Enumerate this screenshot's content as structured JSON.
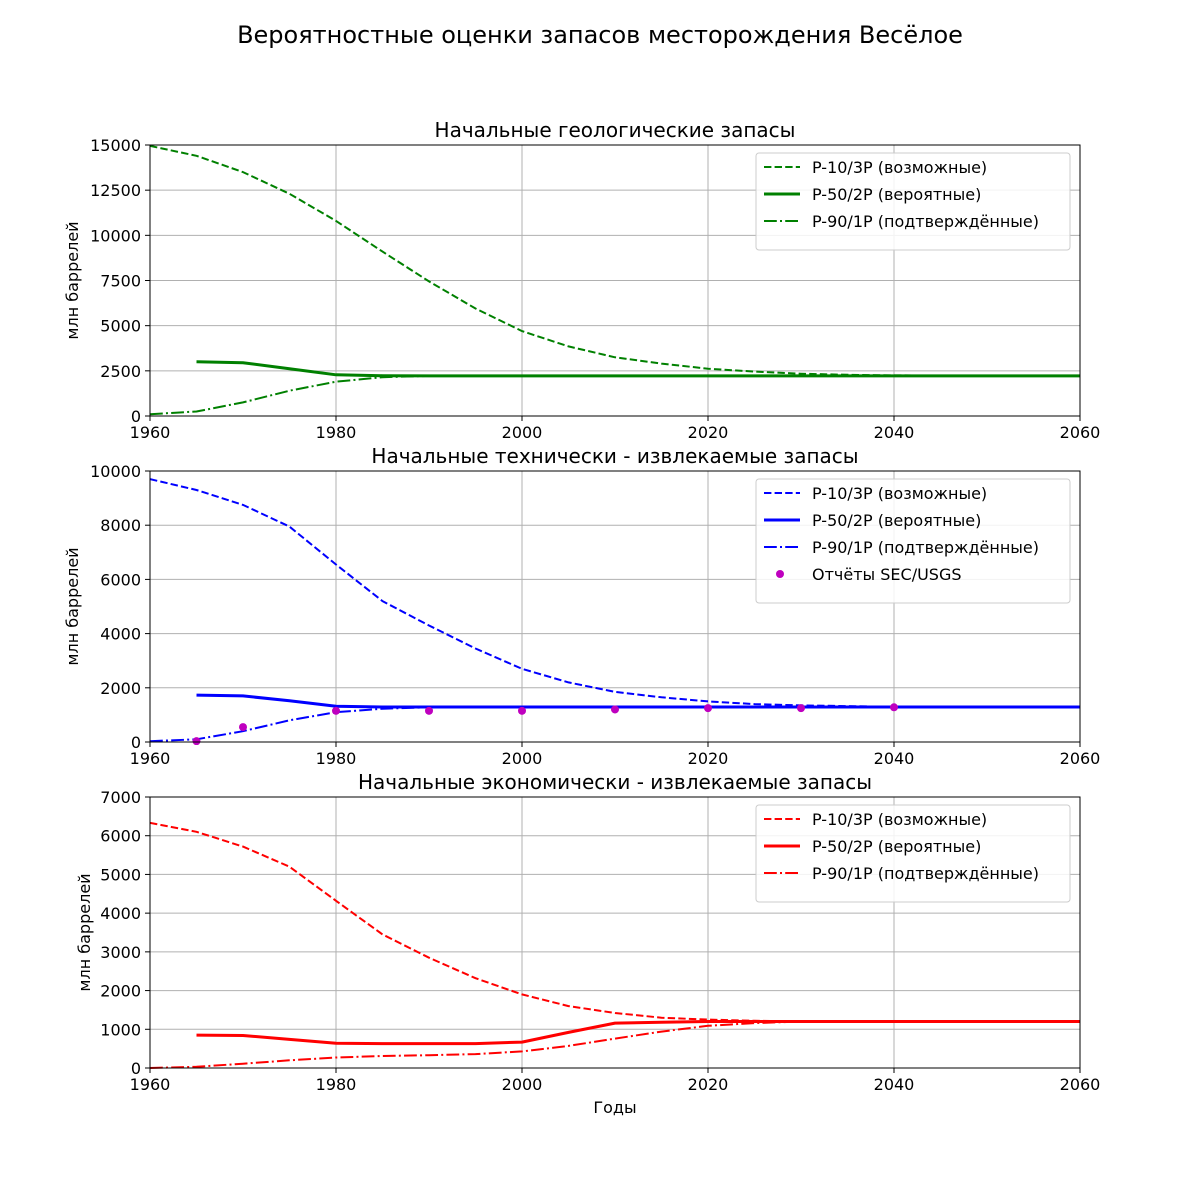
{
  "figure": {
    "suptitle": "Вероятностные оценки запасов месторождения Весёлое",
    "xlabel": "Годы"
  },
  "colors": {
    "green": "#008000",
    "blue": "#0000ff",
    "red": "#ff0000",
    "markers": "#bf00bf",
    "grid": "#b0b0b0"
  },
  "chart_data": [
    {
      "type": "line",
      "title": "Начальные геологические запасы",
      "ylabel": "млн баррелей",
      "xlim": [
        1960,
        2060
      ],
      "ylim": [
        0,
        15000
      ],
      "xticks": [
        1960,
        1980,
        2000,
        2020,
        2040,
        2060
      ],
      "yticks": [
        0,
        2500,
        5000,
        7500,
        10000,
        12500,
        15000
      ],
      "color": "green",
      "legend_position": "top-right",
      "series": [
        {
          "name": "P-10/3P (возможные)",
          "style": "dashed",
          "x": [
            1960,
            1965,
            1970,
            1975,
            1980,
            1985,
            1990,
            1995,
            2000,
            2005,
            2010,
            2015,
            2020,
            2025,
            2030,
            2035,
            2040,
            2050,
            2060
          ],
          "y": [
            14950,
            14400,
            13500,
            12300,
            10800,
            9100,
            7450,
            5950,
            4700,
            3850,
            3250,
            2900,
            2620,
            2460,
            2340,
            2280,
            2250,
            2230,
            2230
          ]
        },
        {
          "name": "P-50/2P (вероятные)",
          "style": "solid",
          "x": [
            1965,
            1970,
            1975,
            1980,
            1985,
            1990,
            2000,
            2020,
            2040,
            2060
          ],
          "y": [
            3000,
            2950,
            2620,
            2280,
            2230,
            2220,
            2220,
            2220,
            2220,
            2220
          ]
        },
        {
          "name": "P-90/1P (подтверждённые)",
          "style": "dashdot",
          "x": [
            1960,
            1965,
            1970,
            1975,
            1980,
            1985,
            1990,
            2000,
            2020,
            2040,
            2060
          ],
          "y": [
            100,
            250,
            750,
            1400,
            1900,
            2150,
            2220,
            2220,
            2220,
            2220,
            2220
          ]
        }
      ]
    },
    {
      "type": "line",
      "title": "Начальные технически - извлекаемые запасы",
      "ylabel": "млн баррелей",
      "xlim": [
        1960,
        2060
      ],
      "ylim": [
        0,
        10000
      ],
      "xticks": [
        1960,
        1980,
        2000,
        2020,
        2040,
        2060
      ],
      "yticks": [
        0,
        2000,
        4000,
        6000,
        8000,
        10000
      ],
      "color": "blue",
      "legend_position": "top-right",
      "series": [
        {
          "name": "P-10/3P (возможные)",
          "style": "dashed",
          "x": [
            1960,
            1965,
            1970,
            1975,
            1980,
            1985,
            1990,
            1995,
            2000,
            2005,
            2010,
            2015,
            2020,
            2025,
            2030,
            2040,
            2050,
            2060
          ],
          "y": [
            9700,
            9300,
            8750,
            7950,
            6550,
            5200,
            4300,
            3450,
            2700,
            2200,
            1850,
            1650,
            1500,
            1400,
            1350,
            1300,
            1290,
            1290
          ]
        },
        {
          "name": "P-50/2P (вероятные)",
          "style": "solid",
          "x": [
            1965,
            1970,
            1975,
            1980,
            1985,
            1990,
            2000,
            2020,
            2040,
            2060
          ],
          "y": [
            1730,
            1700,
            1520,
            1320,
            1290,
            1290,
            1290,
            1290,
            1290,
            1290
          ]
        },
        {
          "name": "P-90/1P (подтверждённые)",
          "style": "dashdot",
          "x": [
            1960,
            1965,
            1970,
            1975,
            1980,
            1985,
            1990,
            2000,
            2020,
            2040,
            2060
          ],
          "y": [
            30,
            100,
            400,
            800,
            1100,
            1230,
            1280,
            1290,
            1290,
            1290,
            1290
          ]
        },
        {
          "name": "Отчёты SEC/USGS",
          "style": "markers",
          "x": [
            1965,
            1970,
            1980,
            1990,
            2000,
            2010,
            2020,
            2030,
            2040
          ],
          "y": [
            30,
            550,
            1150,
            1150,
            1150,
            1200,
            1250,
            1250,
            1280
          ]
        }
      ]
    },
    {
      "type": "line",
      "title": "Начальные экономически - извлекаемые запасы",
      "ylabel": "млн баррелей",
      "xlim": [
        1960,
        2060
      ],
      "ylim": [
        0,
        7000
      ],
      "xticks": [
        1960,
        1980,
        2000,
        2020,
        2040,
        2060
      ],
      "yticks": [
        0,
        1000,
        2000,
        3000,
        4000,
        5000,
        6000,
        7000
      ],
      "color": "red",
      "legend_position": "top-right",
      "series": [
        {
          "name": "P-10/3P (возможные)",
          "style": "dashed",
          "x": [
            1960,
            1965,
            1970,
            1975,
            1980,
            1985,
            1990,
            1995,
            2000,
            2005,
            2010,
            2015,
            2020,
            2025,
            2030,
            2040,
            2060
          ],
          "y": [
            6330,
            6100,
            5720,
            5200,
            4320,
            3450,
            2850,
            2320,
            1900,
            1600,
            1420,
            1300,
            1250,
            1220,
            1200,
            1200,
            1200
          ]
        },
        {
          "name": "P-50/2P (вероятные)",
          "style": "solid",
          "x": [
            1965,
            1970,
            1975,
            1980,
            1985,
            1990,
            1995,
            2000,
            2005,
            2010,
            2015,
            2020,
            2030,
            2040,
            2060
          ],
          "y": [
            850,
            840,
            740,
            640,
            630,
            630,
            630,
            670,
            920,
            1160,
            1180,
            1200,
            1200,
            1200,
            1200
          ]
        },
        {
          "name": "P-90/1P (подтверждённые)",
          "style": "dashdot",
          "x": [
            1960,
            1965,
            1970,
            1975,
            1980,
            1985,
            1990,
            1995,
            2000,
            2005,
            2010,
            2015,
            2020,
            2025,
            2030,
            2040,
            2060
          ],
          "y": [
            0,
            30,
            110,
            200,
            270,
            310,
            330,
            360,
            430,
            570,
            760,
            940,
            1090,
            1160,
            1200,
            1200,
            1200
          ]
        }
      ]
    }
  ]
}
